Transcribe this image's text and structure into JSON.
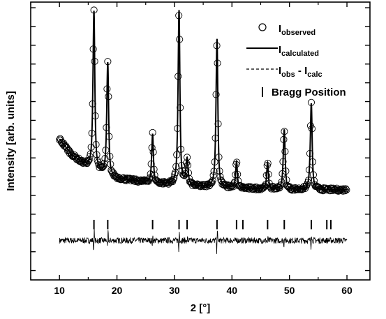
{
  "chart_data": {
    "type": "scatter",
    "xlabel": "2  [°]",
    "ylabel": "Intensity [arb. units]",
    "xlim": [
      5,
      64
    ],
    "ylim": [
      -45,
      103
    ],
    "x_ticks": [
      10,
      20,
      30,
      40,
      50,
      60
    ],
    "x_tick_labels": [
      "10",
      "20",
      "30",
      "40",
      "50",
      "60"
    ],
    "y_tick_labels_shown": false,
    "grid": false,
    "legend": {
      "placement": "top-right",
      "entries": [
        {
          "marker": "open-circle",
          "main": "I",
          "sub": "observed"
        },
        {
          "marker": "solid-line",
          "main": "I",
          "sub": "calculated"
        },
        {
          "marker": "dashed-line",
          "main": "I",
          "sub": "obs",
          "main2": " - I",
          "sub2": "calc"
        },
        {
          "marker": "vertical-bar",
          "main": "Bragg Position",
          "sub": ""
        }
      ]
    },
    "background": {
      "x": [
        10,
        12,
        14,
        16,
        18,
        20,
        25,
        30,
        35,
        40,
        45,
        50,
        55,
        60
      ],
      "y": [
        30,
        22,
        17,
        14,
        11,
        9,
        7,
        5.5,
        4.5,
        4,
        3.5,
        3,
        3,
        3
      ]
    },
    "peaks": [
      {
        "position": 16.0,
        "height": 84,
        "width": 0.22
      },
      {
        "position": 18.4,
        "height": 60,
        "width": 0.22
      },
      {
        "position": 26.2,
        "height": 26,
        "width": 0.2
      },
      {
        "position": 30.8,
        "height": 93,
        "width": 0.22
      },
      {
        "position": 32.2,
        "height": 14,
        "width": 0.25
      },
      {
        "position": 37.4,
        "height": 79,
        "width": 0.22
      },
      {
        "position": 40.8,
        "height": 14,
        "width": 0.2
      },
      {
        "position": 46.2,
        "height": 14,
        "width": 0.2
      },
      {
        "position": 49.1,
        "height": 32,
        "width": 0.22
      },
      {
        "position": 53.8,
        "height": 46,
        "width": 0.22
      }
    ],
    "bragg_positions": [
      16.0,
      18.4,
      26.2,
      30.8,
      32.2,
      37.4,
      40.8,
      41.9,
      46.2,
      49.1,
      53.8,
      56.5,
      57.2
    ],
    "difference_baseline": -24,
    "observed_x_range": [
      10,
      60
    ],
    "colors": {
      "data": "#000000",
      "background": "#ffffff"
    }
  }
}
